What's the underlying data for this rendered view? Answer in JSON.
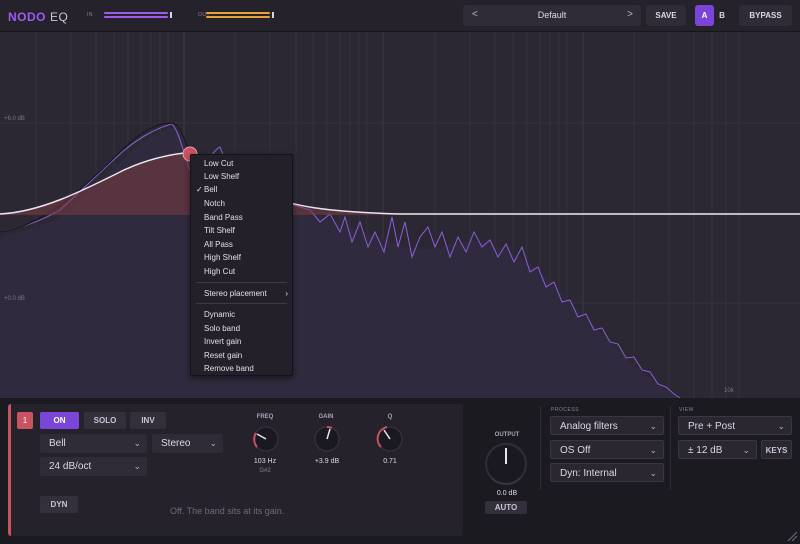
{
  "app": {
    "logo_primary": "NODO",
    "logo_secondary": "EQ",
    "accent": "#7a45d8",
    "band_color": "#c95360"
  },
  "header": {
    "in_label": "IN",
    "out_label": "OUT",
    "preset_prev": "<",
    "preset_name": "Default",
    "preset_next": ">",
    "save": "SAVE",
    "ab_a": "A",
    "ab_b": "B",
    "bypass": "BYPASS"
  },
  "graph": {
    "db_top": "+6.0 dB",
    "db_mid": "+0.0 dB",
    "freq_10k": "10k"
  },
  "menu": {
    "items": [
      "Low Cut",
      "Low Shelf",
      "Bell",
      "Notch",
      "Band Pass",
      "Tilt Shelf",
      "All Pass",
      "High Shelf",
      "High Cut"
    ],
    "checked": "Bell",
    "check_mark": "✓",
    "stereo": "Stereo placement",
    "submenu_arrow": "›",
    "actions": [
      "Dynamic",
      "Solo band",
      "Invert gain",
      "Reset gain",
      "Remove band"
    ]
  },
  "band": {
    "number": "1",
    "on": "ON",
    "solo": "SOLO",
    "inv": "INV",
    "type": "Bell",
    "stereo": "Stereo",
    "slope": "24 dB/oct",
    "dyn": "DYN",
    "hint": "Off. The band sits at its gain.",
    "freq_label": "FREQ",
    "freq_value": "103 Hz",
    "freq_note": "G#2",
    "gain_label": "GAIN",
    "gain_value": "+3.9 dB",
    "q_label": "Q",
    "q_value": "0.71"
  },
  "output": {
    "label": "OUTPUT",
    "value": "0.0 dB",
    "auto": "AUTO"
  },
  "process": {
    "label": "PROCESS",
    "filters": "Analog filters",
    "os": "OS Off",
    "dyn": "Dyn: Internal"
  },
  "view": {
    "label": "VIEW",
    "mode": "Pre + Post",
    "range": "± 12 dB",
    "keys": "KEYS"
  }
}
